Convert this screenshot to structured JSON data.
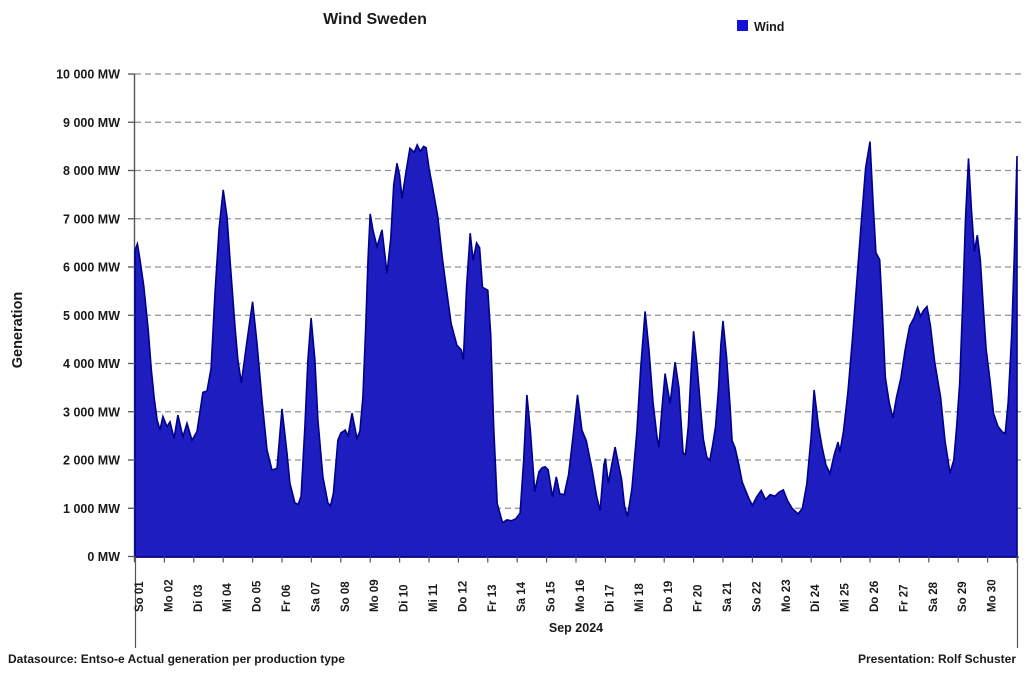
{
  "window": {
    "title": "Wind Sweden"
  },
  "chart": {
    "title": "Wind Sweden",
    "legend": {
      "label": "Wind",
      "swatch_color": "#1111d8"
    },
    "y_axis": {
      "label": "Generation",
      "tick_labels": [
        "0 MW",
        "1 000 MW",
        "2 000 MW",
        "3 000 MW",
        "4 000 MW",
        "5 000 MW",
        "6 000 MW",
        "7 000 MW",
        "8 000 MW",
        "9 000 MW",
        "10 000 MW"
      ],
      "tick_values": [
        0,
        1000,
        2000,
        3000,
        4000,
        5000,
        6000,
        7000,
        8000,
        9000,
        10000
      ]
    },
    "x_axis": {
      "label": "Sep 2024",
      "categories": [
        "So 01",
        "Mo 02",
        "Di 03",
        "Mi 04",
        "Do 05",
        "Fr 06",
        "Sa 07",
        "So 08",
        "Mo 09",
        "Di 10",
        "Mi 11",
        "Do 12",
        "Fr 13",
        "Sa 14",
        "So 15",
        "Mo 16",
        "Di 17",
        "Mi 18",
        "Do 19",
        "Fr 20",
        "Sa 21",
        "So 22",
        "Mo 23",
        "Di 24",
        "Mi 25",
        "Do 26",
        "Fr 27",
        "Sa 28",
        "So 29",
        "Mo 30"
      ]
    },
    "footer": {
      "left": "Datasource: Entso-e  Actual generation per production type",
      "right": "Presentation: Rolf Schuster"
    },
    "colors": {
      "area_fill": "#1d1dc0",
      "area_outline": "#00008b",
      "gridline": "#909090",
      "axis": "#555555"
    }
  },
  "chart_data": {
    "type": "area",
    "title": "Wind Sweden",
    "xlabel": "Sep 2024",
    "ylabel": "Generation",
    "ylim": [
      0,
      10000
    ],
    "y_unit": "MW",
    "x_unit": "days elapsed in Sep 2024 (0 = Sep 1 00:00, 30 = Sep 30 24:00)",
    "grid": "horizontal dashed every 1000 MW",
    "legend_position": "top-right",
    "categories": [
      "So 01",
      "Mo 02",
      "Di 03",
      "Mi 04",
      "Do 05",
      "Fr 06",
      "Sa 07",
      "So 08",
      "Mo 09",
      "Di 10",
      "Mi 11",
      "Do 12",
      "Fr 13",
      "Sa 14",
      "So 15",
      "Mo 16",
      "Di 17",
      "Mi 18",
      "Do 19",
      "Fr 20",
      "Sa 21",
      "So 22",
      "Mo 23",
      "Di 24",
      "Mi 25",
      "Do 26",
      "Fr 27",
      "Sa 28",
      "So 29",
      "Mo 30"
    ],
    "series": [
      {
        "name": "Wind",
        "color": "#1d1dc0",
        "points": [
          [
            0,
            6350
          ],
          [
            0.08,
            6480
          ],
          [
            0.17,
            6150
          ],
          [
            0.3,
            5600
          ],
          [
            0.45,
            4700
          ],
          [
            0.55,
            3900
          ],
          [
            0.65,
            3300
          ],
          [
            0.75,
            2830
          ],
          [
            0.85,
            2620
          ],
          [
            0.95,
            2900
          ],
          [
            1.09,
            2690
          ],
          [
            1.19,
            2790
          ],
          [
            1.33,
            2450
          ],
          [
            1.46,
            2930
          ],
          [
            1.63,
            2480
          ],
          [
            1.77,
            2760
          ],
          [
            1.94,
            2410
          ],
          [
            2.11,
            2590
          ],
          [
            2.21,
            3000
          ],
          [
            2.31,
            3400
          ],
          [
            2.45,
            3430
          ],
          [
            2.59,
            3900
          ],
          [
            2.72,
            5460
          ],
          [
            2.86,
            6800
          ],
          [
            3.0,
            7600
          ],
          [
            3.13,
            7040
          ],
          [
            3.23,
            6150
          ],
          [
            3.4,
            4760
          ],
          [
            3.5,
            4070
          ],
          [
            3.62,
            3600
          ],
          [
            3.8,
            4420
          ],
          [
            4.0,
            5280
          ],
          [
            4.15,
            4420
          ],
          [
            4.32,
            3240
          ],
          [
            4.49,
            2210
          ],
          [
            4.66,
            1790
          ],
          [
            4.83,
            1830
          ],
          [
            5.0,
            3060
          ],
          [
            5.17,
            2140
          ],
          [
            5.27,
            1520
          ],
          [
            5.44,
            1110
          ],
          [
            5.55,
            1080
          ],
          [
            5.65,
            1250
          ],
          [
            5.78,
            2690
          ],
          [
            5.88,
            4070
          ],
          [
            5.99,
            4940
          ],
          [
            6.12,
            4070
          ],
          [
            6.22,
            2830
          ],
          [
            6.39,
            1650
          ],
          [
            6.56,
            1110
          ],
          [
            6.65,
            1050
          ],
          [
            6.75,
            1310
          ],
          [
            6.9,
            2410
          ],
          [
            7.0,
            2560
          ],
          [
            7.15,
            2620
          ],
          [
            7.25,
            2500
          ],
          [
            7.38,
            2970
          ],
          [
            7.55,
            2450
          ],
          [
            7.65,
            2600
          ],
          [
            7.75,
            3300
          ],
          [
            7.85,
            4800
          ],
          [
            7.93,
            6200
          ],
          [
            8.0,
            7100
          ],
          [
            8.1,
            6750
          ],
          [
            8.23,
            6420
          ],
          [
            8.4,
            6770
          ],
          [
            8.57,
            5870
          ],
          [
            8.7,
            6600
          ],
          [
            8.8,
            7700
          ],
          [
            8.91,
            8150
          ],
          [
            9.0,
            7900
          ],
          [
            9.08,
            7430
          ],
          [
            9.2,
            7900
          ],
          [
            9.35,
            8460
          ],
          [
            9.5,
            8380
          ],
          [
            9.6,
            8530
          ],
          [
            9.7,
            8400
          ],
          [
            9.82,
            8500
          ],
          [
            9.9,
            8470
          ],
          [
            10.0,
            8050
          ],
          [
            10.12,
            7660
          ],
          [
            10.3,
            7040
          ],
          [
            10.45,
            6210
          ],
          [
            10.6,
            5520
          ],
          [
            10.75,
            4830
          ],
          [
            10.95,
            4380
          ],
          [
            11.1,
            4280
          ],
          [
            11.17,
            4080
          ],
          [
            11.28,
            5600
          ],
          [
            11.4,
            6700
          ],
          [
            11.5,
            6140
          ],
          [
            11.62,
            6500
          ],
          [
            11.72,
            6400
          ],
          [
            11.82,
            5580
          ],
          [
            12.0,
            5520
          ],
          [
            12.1,
            4600
          ],
          [
            12.2,
            2680
          ],
          [
            12.32,
            1100
          ],
          [
            12.5,
            700
          ],
          [
            12.65,
            760
          ],
          [
            12.8,
            740
          ],
          [
            12.95,
            780
          ],
          [
            13.1,
            900
          ],
          [
            13.22,
            2000
          ],
          [
            13.33,
            3350
          ],
          [
            13.45,
            2600
          ],
          [
            13.6,
            1350
          ],
          [
            13.74,
            1760
          ],
          [
            13.85,
            1840
          ],
          [
            13.95,
            1860
          ],
          [
            14.05,
            1800
          ],
          [
            14.2,
            1240
          ],
          [
            14.33,
            1650
          ],
          [
            14.45,
            1300
          ],
          [
            14.6,
            1280
          ],
          [
            14.75,
            1700
          ],
          [
            14.9,
            2500
          ],
          [
            15.05,
            3350
          ],
          [
            15.2,
            2620
          ],
          [
            15.35,
            2400
          ],
          [
            15.55,
            1790
          ],
          [
            15.7,
            1250
          ],
          [
            15.82,
            950
          ],
          [
            15.95,
            1900
          ],
          [
            16.0,
            2030
          ],
          [
            16.1,
            1520
          ],
          [
            16.33,
            2270
          ],
          [
            16.45,
            1900
          ],
          [
            16.55,
            1600
          ],
          [
            16.65,
            1050
          ],
          [
            16.75,
            830
          ],
          [
            16.9,
            1400
          ],
          [
            17.07,
            2600
          ],
          [
            17.2,
            3900
          ],
          [
            17.35,
            5080
          ],
          [
            17.48,
            4300
          ],
          [
            17.62,
            3200
          ],
          [
            17.75,
            2500
          ],
          [
            17.82,
            2260
          ],
          [
            17.93,
            3100
          ],
          [
            18.03,
            3790
          ],
          [
            18.2,
            3170
          ],
          [
            18.37,
            4030
          ],
          [
            18.5,
            3500
          ],
          [
            18.64,
            2160
          ],
          [
            18.72,
            2100
          ],
          [
            18.82,
            2700
          ],
          [
            18.91,
            3800
          ],
          [
            19.0,
            4670
          ],
          [
            19.12,
            3950
          ],
          [
            19.25,
            3000
          ],
          [
            19.33,
            2440
          ],
          [
            19.45,
            2060
          ],
          [
            19.55,
            1990
          ],
          [
            19.65,
            2320
          ],
          [
            19.75,
            2700
          ],
          [
            19.85,
            3500
          ],
          [
            19.93,
            4400
          ],
          [
            20.0,
            4880
          ],
          [
            20.12,
            4150
          ],
          [
            20.24,
            3100
          ],
          [
            20.31,
            2400
          ],
          [
            20.41,
            2250
          ],
          [
            20.54,
            1900
          ],
          [
            20.65,
            1550
          ],
          [
            20.77,
            1370
          ],
          [
            20.88,
            1200
          ],
          [
            21.0,
            1060
          ],
          [
            21.15,
            1240
          ],
          [
            21.3,
            1370
          ],
          [
            21.45,
            1180
          ],
          [
            21.6,
            1280
          ],
          [
            21.77,
            1250
          ],
          [
            21.9,
            1330
          ],
          [
            22.05,
            1380
          ],
          [
            22.2,
            1150
          ],
          [
            22.35,
            1000
          ],
          [
            22.55,
            880
          ],
          [
            22.7,
            1000
          ],
          [
            22.85,
            1500
          ],
          [
            23.0,
            2500
          ],
          [
            23.1,
            3450
          ],
          [
            23.25,
            2700
          ],
          [
            23.37,
            2270
          ],
          [
            23.5,
            1900
          ],
          [
            23.64,
            1720
          ],
          [
            23.78,
            2100
          ],
          [
            23.91,
            2370
          ],
          [
            23.98,
            2170
          ],
          [
            24.1,
            2600
          ],
          [
            24.25,
            3400
          ],
          [
            24.4,
            4500
          ],
          [
            24.55,
            5700
          ],
          [
            24.7,
            6900
          ],
          [
            24.85,
            8050
          ],
          [
            25.0,
            8600
          ],
          [
            25.1,
            7400
          ],
          [
            25.2,
            6300
          ],
          [
            25.33,
            6150
          ],
          [
            25.42,
            5100
          ],
          [
            25.52,
            3720
          ],
          [
            25.65,
            3200
          ],
          [
            25.78,
            2870
          ],
          [
            25.9,
            3300
          ],
          [
            26.05,
            3700
          ],
          [
            26.2,
            4300
          ],
          [
            26.35,
            4780
          ],
          [
            26.5,
            4950
          ],
          [
            26.62,
            5160
          ],
          [
            26.72,
            4980
          ],
          [
            26.82,
            5100
          ],
          [
            26.94,
            5180
          ],
          [
            27.05,
            4800
          ],
          [
            27.2,
            4030
          ],
          [
            27.4,
            3300
          ],
          [
            27.55,
            2400
          ],
          [
            27.72,
            1730
          ],
          [
            27.85,
            2000
          ],
          [
            27.95,
            2700
          ],
          [
            28.05,
            3600
          ],
          [
            28.15,
            5200
          ],
          [
            28.25,
            7000
          ],
          [
            28.35,
            8250
          ],
          [
            28.45,
            7200
          ],
          [
            28.55,
            6320
          ],
          [
            28.65,
            6660
          ],
          [
            28.75,
            6150
          ],
          [
            28.85,
            5200
          ],
          [
            28.95,
            4300
          ],
          [
            29.08,
            3650
          ],
          [
            29.2,
            2970
          ],
          [
            29.35,
            2700
          ],
          [
            29.5,
            2580
          ],
          [
            29.6,
            2550
          ],
          [
            29.7,
            3200
          ],
          [
            29.82,
            4600
          ],
          [
            29.91,
            6300
          ],
          [
            30.0,
            8300
          ]
        ]
      }
    ]
  }
}
